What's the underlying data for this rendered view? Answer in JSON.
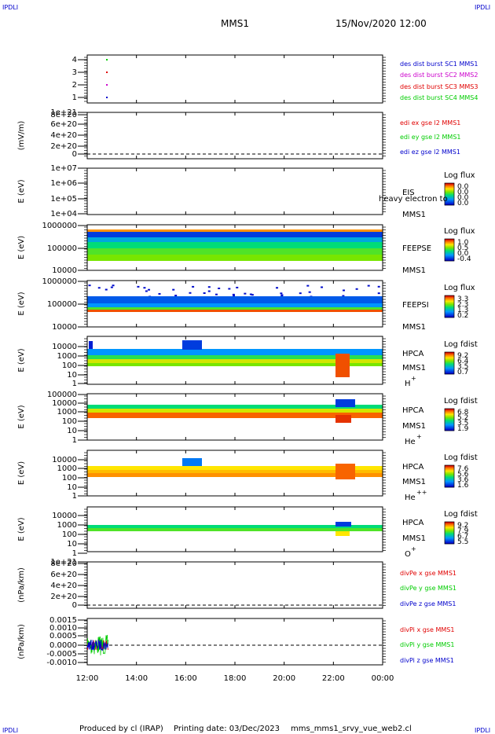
{
  "header": {
    "corner_tl": "IPDLI",
    "corner_tr": "IPDLI",
    "corner_bl": "IPDLI",
    "corner_br": "IPDLI",
    "mission": "MMS1",
    "datetime": "15/Nov/2020 12:00"
  },
  "footer": {
    "produced": "Produced by cl (IRAP)",
    "printing": "Printing date: 03/Dec/2023",
    "script": "mms_mms1_srvy_vue_web2.cl"
  },
  "colors": {
    "red": "#e00000",
    "green": "#00cc00",
    "blue": "#0000cc",
    "magenta": "#cc00cc"
  },
  "chart_data": {
    "type": "multi-panel time series and spectrograms",
    "x_ticks": [
      "12:00",
      "14:00",
      "16:00",
      "18:00",
      "20:00",
      "22:00",
      "00:00"
    ],
    "x_range_hours": [
      12,
      24
    ],
    "panels": [
      {
        "id": "des",
        "type": "scatter",
        "y_ticks": [
          "1",
          "2",
          "3",
          "4"
        ],
        "legend": [
          {
            "text": "des dist burst SC1 MMS1",
            "color": "#0000cc"
          },
          {
            "text": "des dist burst SC2 MMS2",
            "color": "#cc00cc"
          },
          {
            "text": "des dist burst SC3 MMS3",
            "color": "#e00000"
          },
          {
            "text": "des dist burst SC4 MMS4",
            "color": "#00cc00"
          }
        ],
        "points": [
          {
            "x": 12.8,
            "y": 4,
            "color": "#00cc00"
          },
          {
            "x": 12.8,
            "y": 3,
            "color": "#e00000"
          },
          {
            "x": 12.8,
            "y": 2,
            "color": "#cc00cc"
          },
          {
            "x": 12.8,
            "y": 1,
            "color": "#0000cc"
          }
        ]
      },
      {
        "id": "edi",
        "type": "line",
        "ylabel": "(mV/m)",
        "y_ticks": [
          "0",
          "2e+20",
          "4e+20",
          "6e+20",
          "8e+20",
          "1e+21"
        ],
        "legend": [
          {
            "text": "edi ex gse l2 MMS1",
            "color": "#e00000"
          },
          {
            "text": "edi ey gse l2 MMS1",
            "color": "#00cc00"
          },
          {
            "text": "edi ez gse l2 MMS1",
            "color": "#0000cc"
          }
        ]
      },
      {
        "id": "eis",
        "type": "heatmap",
        "ylabel": "E (eV)",
        "y_ticks": [
          "1e+04",
          "1e+05",
          "1e+06",
          "1e+07"
        ],
        "name": "EIS",
        "overlay": "heavy electron to",
        "sc": "MMS1",
        "cbar_title": "Log flux",
        "cbar_ticks": [
          "0.0",
          "0.0",
          "0.0",
          "0.0"
        ]
      },
      {
        "id": "feepse",
        "type": "heatmap",
        "ylabel": "E (eV)",
        "y_ticks": [
          "10000",
          "100000",
          "1000000"
        ],
        "name": "FEEPSE",
        "sc": "MMS1",
        "cbar_title": "Log flux",
        "cbar_ticks": [
          "1.0",
          "0.5",
          "0.0",
          "-0.4"
        ]
      },
      {
        "id": "feepsi",
        "type": "heatmap",
        "ylabel": "E (eV)",
        "y_ticks": [
          "10000",
          "100000",
          "1000000"
        ],
        "name": "FEEPSI",
        "sc": "MMS1",
        "cbar_title": "Log flux",
        "cbar_ticks": [
          "3.3",
          "2.3",
          "1.3",
          "0.2"
        ]
      },
      {
        "id": "hpca_h",
        "type": "heatmap",
        "ylabel": "E (eV)",
        "y_ticks": [
          "1",
          "10",
          "100",
          "1000",
          "10000"
        ],
        "name": "HPCA",
        "sc": "MMS1",
        "species": "H",
        "charge": "+",
        "cbar_title": "Log fdist",
        "cbar_ticks": [
          "9.2",
          "6.4",
          "3.5",
          "0.7"
        ]
      },
      {
        "id": "hpca_he",
        "type": "heatmap",
        "ylabel": "E (eV)",
        "y_ticks": [
          "1",
          "10",
          "100",
          "1000",
          "10000",
          "100000"
        ],
        "name": "HPCA",
        "sc": "MMS1",
        "species": "He",
        "charge": "+",
        "cbar_title": "Log fdist",
        "cbar_ticks": [
          "6.8",
          "5.2",
          "3.5",
          "1.9"
        ]
      },
      {
        "id": "hpca_hepp",
        "type": "heatmap",
        "ylabel": "E (eV)",
        "y_ticks": [
          "1",
          "10",
          "100",
          "1000",
          "10000"
        ],
        "name": "HPCA",
        "sc": "MMS1",
        "species": "He",
        "charge": "++",
        "cbar_title": "Log fdist",
        "cbar_ticks": [
          "7.6",
          "5.6",
          "3.6",
          "1.6"
        ]
      },
      {
        "id": "hpca_o",
        "type": "heatmap",
        "ylabel": "E (eV)",
        "y_ticks": [
          "1",
          "10",
          "100",
          "1000",
          "10000"
        ],
        "name": "HPCA",
        "sc": "MMS1",
        "species": "O",
        "charge": "+",
        "cbar_title": "Log fdist",
        "cbar_ticks": [
          "9.2",
          "7.9",
          "6.7",
          "5.5"
        ]
      },
      {
        "id": "divpe",
        "type": "line",
        "ylabel": "(nPa/km)",
        "y_ticks": [
          "0",
          "2e+20",
          "4e+20",
          "6e+20",
          "8e+20",
          "1e+21"
        ],
        "legend": [
          {
            "text": "divPe x gse MMS1",
            "color": "#e00000"
          },
          {
            "text": "divPe y gse MMS1",
            "color": "#00cc00"
          },
          {
            "text": "divPe z gse MMS1",
            "color": "#0000cc"
          }
        ]
      },
      {
        "id": "divpi",
        "type": "line",
        "ylabel": "(nPa/km)",
        "y_ticks": [
          "-0.0010",
          "-0.0005",
          "0.0000",
          "0.0005",
          "0.0010",
          "0.0015"
        ],
        "x_data_range_hours": [
          12.0,
          12.85
        ],
        "legend": [
          {
            "text": "divPi x gse MMS1",
            "color": "#e00000"
          },
          {
            "text": "divPi y gse MMS1",
            "color": "#00cc00"
          },
          {
            "text": "divPi z gse MMS1",
            "color": "#0000cc"
          }
        ]
      }
    ]
  }
}
